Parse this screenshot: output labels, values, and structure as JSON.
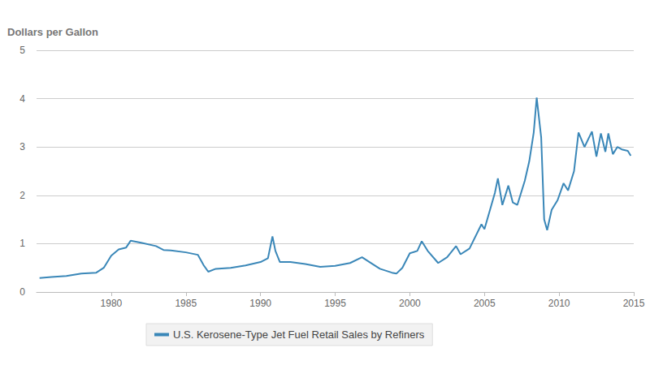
{
  "chart_data": {
    "type": "line",
    "ylabel": "Dollars per Gallon",
    "x": [
      1975.2,
      1976,
      1977,
      1978,
      1979,
      1979.5,
      1980,
      1980.5,
      1981,
      1981.3,
      1982,
      1983,
      1983.5,
      1984,
      1985,
      1985.8,
      1986.2,
      1986.5,
      1987,
      1988,
      1989,
      1990,
      1990.5,
      1990.8,
      1991,
      1991.3,
      1992,
      1993,
      1994,
      1995,
      1996,
      1996.8,
      1997.3,
      1998,
      1998.8,
      1999.1,
      1999.5,
      2000,
      2000.5,
      2000.8,
      2001.2,
      2001.9,
      2002.5,
      2003.1,
      2003.4,
      2004,
      2004.8,
      2005,
      2005.7,
      2005.9,
      2006.2,
      2006.6,
      2006.9,
      2007.2,
      2007.7,
      2008.0,
      2008.3,
      2008.5,
      2008.8,
      2009.0,
      2009.2,
      2009.5,
      2009.9,
      2010.3,
      2010.6,
      2011.0,
      2011.3,
      2011.7,
      2012.2,
      2012.5,
      2012.8,
      2013.1,
      2013.3,
      2013.6,
      2013.9,
      2014.2,
      2014.6,
      2014.8
    ],
    "series": [
      {
        "name": "U.S. Kerosene-Type Jet Fuel Retail Sales by Refiners",
        "color": "#3a87b8",
        "values": [
          0.29,
          0.31,
          0.33,
          0.38,
          0.4,
          0.5,
          0.75,
          0.88,
          0.92,
          1.06,
          1.02,
          0.95,
          0.87,
          0.86,
          0.82,
          0.77,
          0.55,
          0.42,
          0.48,
          0.5,
          0.55,
          0.62,
          0.7,
          1.15,
          0.85,
          0.62,
          0.62,
          0.58,
          0.52,
          0.54,
          0.6,
          0.72,
          0.62,
          0.48,
          0.4,
          0.38,
          0.5,
          0.8,
          0.85,
          1.05,
          0.85,
          0.6,
          0.72,
          0.95,
          0.78,
          0.9,
          1.4,
          1.3,
          2.05,
          2.35,
          1.8,
          2.2,
          1.85,
          1.8,
          2.3,
          2.7,
          3.3,
          4.02,
          3.2,
          1.5,
          1.28,
          1.7,
          1.9,
          2.25,
          2.1,
          2.5,
          3.3,
          3.0,
          3.32,
          2.8,
          3.28,
          2.9,
          3.28,
          2.85,
          3.0,
          2.95,
          2.92,
          2.82
        ]
      }
    ],
    "xlim": [
      1975,
      2015
    ],
    "xticks": [
      1980,
      1985,
      1990,
      1995,
      2000,
      2005,
      2010,
      2015
    ],
    "ylim": [
      0,
      5
    ],
    "yticks": [
      0,
      1,
      2,
      3,
      4,
      5
    ],
    "grid": true,
    "legend": "bottom"
  }
}
